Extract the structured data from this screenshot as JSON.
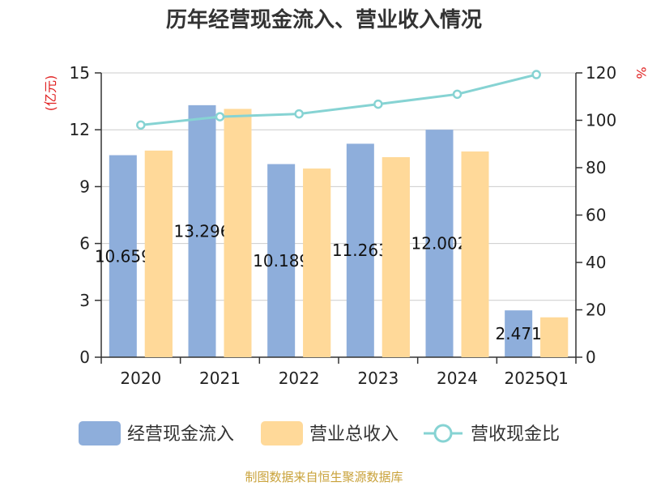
{
  "chart_data": {
    "type": "bar",
    "title": "历年经营现金流入、营业收入情况",
    "categories": [
      "2020",
      "2021",
      "2022",
      "2023",
      "2024",
      "2025Q1"
    ],
    "series": [
      {
        "name": "经营现金流入",
        "type": "bar",
        "axis": "left",
        "color": "#8eaedb",
        "values": [
          10.659,
          13.296,
          10.189,
          11.263,
          12.002,
          2.471
        ],
        "labels": [
          "10.659",
          "13.296",
          "10.189",
          "11.263",
          "12.002",
          "2.471"
        ]
      },
      {
        "name": "营业总收入",
        "type": "bar",
        "axis": "left",
        "color": "#ffd999",
        "values": [
          10.9,
          13.1,
          9.95,
          10.55,
          10.85,
          2.1
        ]
      },
      {
        "name": "营收现金比",
        "type": "line",
        "axis": "right",
        "color": "#86d3d3",
        "values": [
          98,
          101.5,
          102.7,
          106.8,
          111,
          119.3
        ]
      }
    ],
    "y_left": {
      "label": "(亿元)",
      "min": 0,
      "max": 15,
      "ticks": [
        0,
        3,
        6,
        9,
        12,
        15
      ]
    },
    "y_right": {
      "label": "%",
      "min": 0,
      "max": 120,
      "ticks": [
        0,
        20,
        40,
        60,
        80,
        100,
        120
      ]
    },
    "grid": true,
    "legend_position": "bottom"
  },
  "source": "制图数据来自恒生聚源数据库",
  "colors": {
    "left_unit": "#e02020",
    "right_unit": "#e02020",
    "source": "#c9a23a",
    "title": "#333333"
  }
}
